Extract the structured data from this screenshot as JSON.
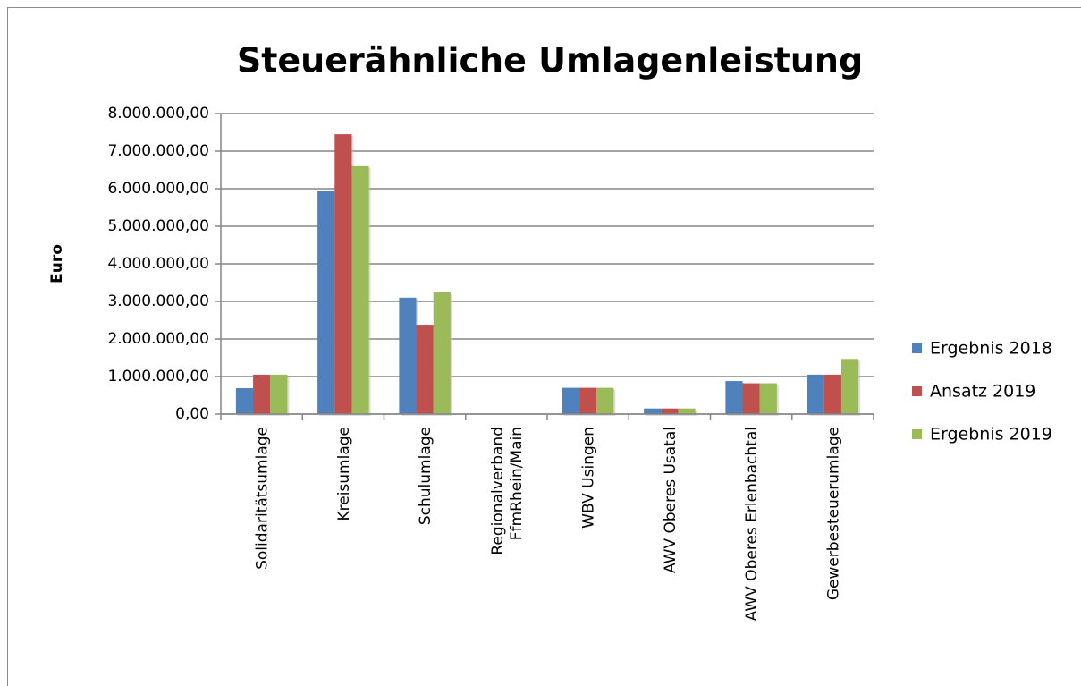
{
  "chart_data": {
    "type": "bar",
    "title": "Steuerähnliche Umlagenleistung",
    "y_label": "Euro",
    "categories": [
      "Solidaritätsumlage",
      "Kreisumlage",
      "Schulumlage",
      "Regionalverband\nFfmRhein/Main",
      "WBV Usingen",
      "AWV Oberes Usatal",
      "AWV Oberes Erlenbachtal",
      "Gewerbesteuerumlage"
    ],
    "series": [
      {
        "name": "Ergebnis 2018",
        "color": "#4f81bd",
        "values": [
          690000,
          5950000,
          3100000,
          0,
          700000,
          150000,
          880000,
          1050000
        ]
      },
      {
        "name": "Ansatz 2019",
        "color": "#c0504d",
        "values": [
          1050000,
          7450000,
          2380000,
          0,
          700000,
          150000,
          820000,
          1050000
        ]
      },
      {
        "name": "Ergebnis 2019",
        "color": "#9bbb59",
        "values": [
          1050000,
          6600000,
          3240000,
          0,
          700000,
          150000,
          820000,
          1470000
        ]
      }
    ],
    "ylim": [
      0,
      8000000
    ],
    "yticks": [
      {
        "value": 0,
        "label": "0,00"
      },
      {
        "value": 1000000,
        "label": "1.000.000,00"
      },
      {
        "value": 2000000,
        "label": "2.000.000,00"
      },
      {
        "value": 3000000,
        "label": "3.000.000,00"
      },
      {
        "value": 4000000,
        "label": "4.000.000,00"
      },
      {
        "value": 5000000,
        "label": "5.000.000,00"
      },
      {
        "value": 6000000,
        "label": "6.000.000,00"
      },
      {
        "value": 7000000,
        "label": "7.000.000,00"
      },
      {
        "value": 8000000,
        "label": "8.000.000,00"
      }
    ],
    "grid": true,
    "legend": "right"
  }
}
